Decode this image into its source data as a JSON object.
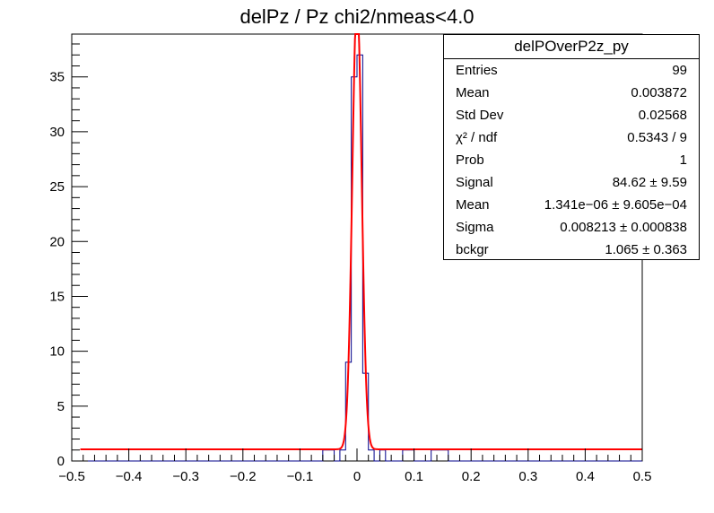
{
  "title": "delPz / Pz chi2/nmeas<4.0",
  "colors": {
    "histogram": "#00008b",
    "fit": "#ff0000",
    "axis": "#000000"
  },
  "stats": {
    "name": "delPOverP2z_py",
    "rows": [
      {
        "key": "Entries",
        "value": "99"
      },
      {
        "key": "Mean",
        "value": "0.003872"
      },
      {
        "key": "Std Dev",
        "value": "0.02568"
      },
      {
        "key": "χ² / ndf",
        "value": "0.5343 / 9"
      },
      {
        "key": "Prob",
        "value": "1"
      },
      {
        "key": "Signal",
        "value": "84.62 ± 9.59"
      },
      {
        "key": "Mean",
        "value": "1.341e−06 ± 9.605e−04"
      },
      {
        "key": "Sigma",
        "value": "0.008213 ± 0.000838"
      },
      {
        "key": "bckgr",
        "value": "1.065 ± 0.363"
      }
    ]
  },
  "chart_data": {
    "type": "histogram",
    "title": "delPz / Pz chi2/nmeas<4.0",
    "xlabel": "",
    "ylabel": "",
    "xlim": [
      -0.5,
      0.5
    ],
    "ylim": [
      0,
      38.9
    ],
    "x_ticks": [
      -0.5,
      -0.4,
      -0.3,
      -0.2,
      -0.1,
      0,
      0.1,
      0.2,
      0.3,
      0.4,
      0.5
    ],
    "x_tick_labels": [
      "−0.5",
      "−0.4",
      "−0.3",
      "−0.2",
      "−0.1",
      "0",
      "0.1",
      "0.2",
      "0.3",
      "0.4",
      "0.5"
    ],
    "y_ticks": [
      0,
      5,
      10,
      15,
      20,
      25,
      30,
      35
    ],
    "y_tick_labels": [
      "0",
      "5",
      "10",
      "15",
      "20",
      "25",
      "30",
      "35"
    ],
    "bin_width": 0.01,
    "bins_nonzero": [
      {
        "low": -0.06,
        "count": 1
      },
      {
        "low": -0.05,
        "count": 1
      },
      {
        "low": -0.03,
        "count": 1
      },
      {
        "low": -0.02,
        "count": 9
      },
      {
        "low": -0.01,
        "count": 35
      },
      {
        "low": 0.0,
        "count": 37
      },
      {
        "low": 0.01,
        "count": 8
      },
      {
        "low": 0.02,
        "count": 1
      },
      {
        "low": 0.04,
        "count": 1
      },
      {
        "low": 0.08,
        "count": 1
      },
      {
        "low": 0.09,
        "count": 1
      },
      {
        "low": 0.13,
        "count": 1
      },
      {
        "low": 0.14,
        "count": 1
      },
      {
        "low": 0.15,
        "count": 1
      }
    ],
    "fit": {
      "function": "gaussian + constant",
      "signal": 84.62,
      "mean": 1.341e-06,
      "sigma": 0.008213,
      "background": 1.065
    }
  }
}
